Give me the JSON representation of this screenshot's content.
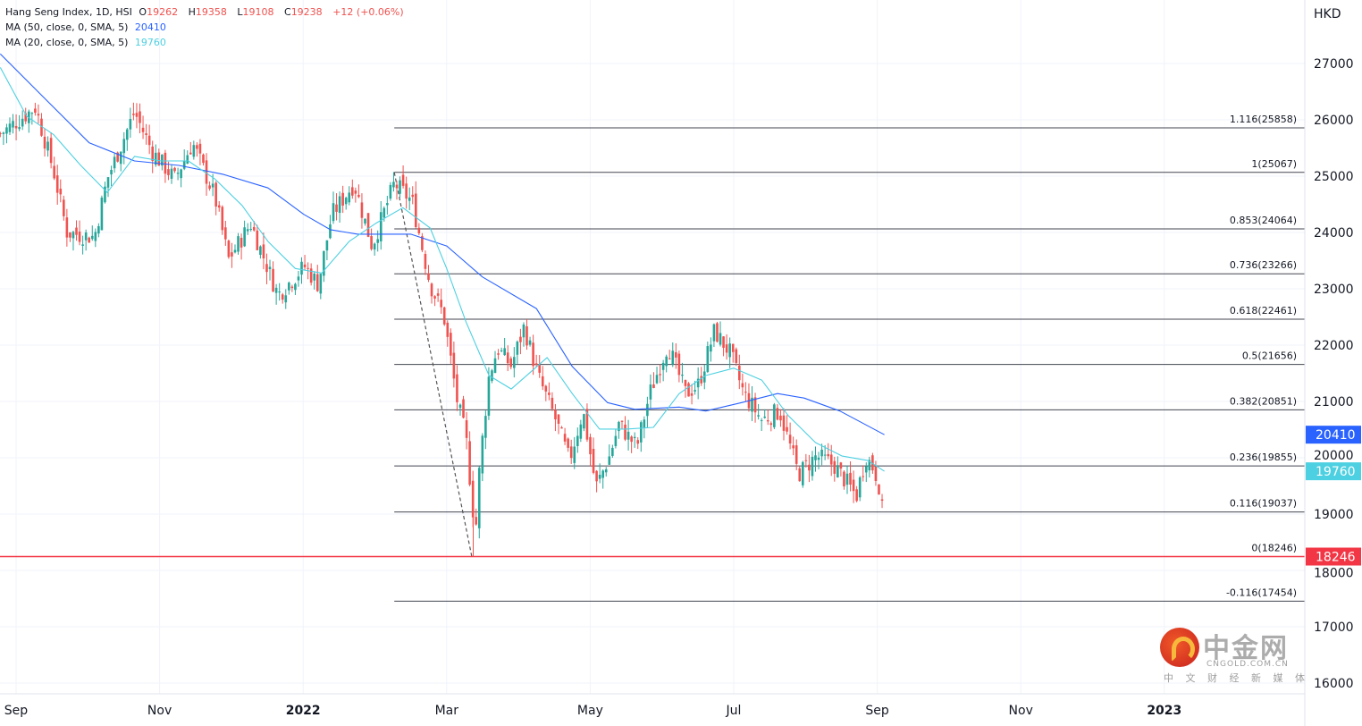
{
  "legend": {
    "symbol": "Hang Seng Index, 1D, HSI",
    "open_label": "O",
    "open": "19262",
    "high_label": "H",
    "high": "19358",
    "low_label": "L",
    "low": "19108",
    "close_label": "C",
    "close": "19238",
    "change": "+12 (+0.06%)",
    "ma50_label": "MA (50, close, 0, SMA, 5)",
    "ma50_value": "20410",
    "ma20_label": "MA (20, close, 0, SMA, 5)",
    "ma20_value": "19760"
  },
  "watermark": {
    "title": "中金网",
    "domain": "CNGOLD.COM.CN",
    "slogan": "中 文 财 经 新 媒 体"
  },
  "colors": {
    "up": "#26a69a",
    "down": "#ef5350",
    "ma50": "#2962ff",
    "ma20": "#4dd0e1",
    "fib": "#434651",
    "low_line": "#f23645"
  },
  "chart_data": {
    "type": "candlestick",
    "currency": "HKD",
    "x_unit": "months since 2021-09-01",
    "x_range": [
      -0.22,
      18.0
    ],
    "ylim": [
      15800,
      28000
    ],
    "y_ticks": [
      16000,
      17000,
      18000,
      19000,
      20000,
      21000,
      22000,
      23000,
      24000,
      25000,
      26000,
      27000
    ],
    "x_ticks": [
      {
        "label": "Sep",
        "m": 0,
        "bold": false
      },
      {
        "label": "Nov",
        "m": 2,
        "bold": false
      },
      {
        "label": "2022",
        "m": 4,
        "bold": true
      },
      {
        "label": "Mar",
        "m": 6,
        "bold": false
      },
      {
        "label": "May",
        "m": 8,
        "bold": false
      },
      {
        "label": "Jul",
        "m": 10,
        "bold": false
      },
      {
        "label": "Sep",
        "m": 12,
        "bold": false
      },
      {
        "label": "Nov",
        "m": 14,
        "bold": false
      },
      {
        "label": "2023",
        "m": 16,
        "bold": true
      }
    ],
    "price_path": [
      [
        -0.22,
        25750
      ],
      [
        0.27,
        26220
      ],
      [
        0.52,
        25110
      ],
      [
        0.71,
        24000
      ],
      [
        1.09,
        23920
      ],
      [
        1.27,
        24950
      ],
      [
        1.65,
        26140
      ],
      [
        1.9,
        25430
      ],
      [
        2.21,
        24950
      ],
      [
        2.46,
        25590
      ],
      [
        2.77,
        24630
      ],
      [
        2.96,
        23520
      ],
      [
        3.27,
        24160
      ],
      [
        3.65,
        22890
      ],
      [
        4.02,
        23400
      ],
      [
        4.21,
        23080
      ],
      [
        4.4,
        24320
      ],
      [
        4.71,
        24870
      ],
      [
        4.96,
        23760
      ],
      [
        5.27,
        24870
      ],
      [
        5.52,
        24550
      ],
      [
        5.77,
        23080
      ],
      [
        5.96,
        22520
      ],
      [
        6.15,
        20980
      ],
      [
        6.27,
        20350
      ],
      [
        6.4,
        18620
      ],
      [
        6.46,
        19860
      ],
      [
        6.59,
        21460
      ],
      [
        6.71,
        21940
      ],
      [
        6.9,
        21630
      ],
      [
        7.08,
        22330
      ],
      [
        7.27,
        21460
      ],
      [
        7.52,
        20670
      ],
      [
        7.71,
        19950
      ],
      [
        7.9,
        20830
      ],
      [
        8.08,
        19480
      ],
      [
        8.27,
        20030
      ],
      [
        8.4,
        20590
      ],
      [
        8.65,
        20190
      ],
      [
        8.83,
        21140
      ],
      [
        9.08,
        22010
      ],
      [
        9.33,
        21140
      ],
      [
        9.51,
        21300
      ],
      [
        9.73,
        22250
      ],
      [
        9.95,
        21860
      ],
      [
        10.14,
        21140
      ],
      [
        10.39,
        20670
      ],
      [
        10.64,
        20830
      ],
      [
        10.9,
        19710
      ],
      [
        11.15,
        20030
      ],
      [
        11.4,
        19870
      ],
      [
        11.71,
        19320
      ],
      [
        11.84,
        20030
      ],
      [
        11.96,
        19790
      ],
      [
        12.09,
        19240
      ]
    ],
    "last_candle": {
      "open": 19262,
      "high": 19358,
      "low": 19108,
      "close": 19238
    },
    "series": [
      {
        "name": "MA 50",
        "value": 20410,
        "points": [
          [
            -0.22,
            27170
          ],
          [
            0.4,
            26380
          ],
          [
            1.02,
            25590
          ],
          [
            1.65,
            25270
          ],
          [
            2.27,
            25190
          ],
          [
            2.89,
            25030
          ],
          [
            3.51,
            24790
          ],
          [
            4.01,
            24320
          ],
          [
            4.38,
            24050
          ],
          [
            4.76,
            23970
          ],
          [
            5.5,
            23970
          ],
          [
            6.0,
            23760
          ],
          [
            6.5,
            23210
          ],
          [
            7.25,
            22650
          ],
          [
            7.75,
            21620
          ],
          [
            8.24,
            20980
          ],
          [
            8.62,
            20860
          ],
          [
            9.24,
            20900
          ],
          [
            9.61,
            20830
          ],
          [
            10.11,
            20980
          ],
          [
            10.61,
            21140
          ],
          [
            10.98,
            21060
          ],
          [
            11.48,
            20830
          ],
          [
            12.1,
            20410
          ]
        ]
      },
      {
        "name": "MA 20",
        "value": 19760,
        "points": [
          [
            -0.22,
            26930
          ],
          [
            0.15,
            26060
          ],
          [
            0.52,
            25740
          ],
          [
            0.9,
            25190
          ],
          [
            1.27,
            24710
          ],
          [
            1.65,
            25350
          ],
          [
            2.02,
            25270
          ],
          [
            2.4,
            25270
          ],
          [
            2.77,
            24950
          ],
          [
            3.15,
            24480
          ],
          [
            3.51,
            23840
          ],
          [
            3.89,
            23360
          ],
          [
            4.26,
            23280
          ],
          [
            4.64,
            23840
          ],
          [
            5.01,
            24160
          ],
          [
            5.39,
            24440
          ],
          [
            5.77,
            24080
          ],
          [
            6.0,
            23360
          ],
          [
            6.27,
            22410
          ],
          [
            6.59,
            21460
          ],
          [
            6.9,
            21220
          ],
          [
            7.4,
            21780
          ],
          [
            7.75,
            21140
          ],
          [
            8.13,
            20510
          ],
          [
            8.5,
            20510
          ],
          [
            8.88,
            20540
          ],
          [
            9.24,
            21140
          ],
          [
            9.61,
            21460
          ],
          [
            10.0,
            21590
          ],
          [
            10.39,
            21380
          ],
          [
            10.76,
            20750
          ],
          [
            11.14,
            20270
          ],
          [
            11.51,
            20030
          ],
          [
            11.87,
            19950
          ],
          [
            12.1,
            19760
          ]
        ]
      }
    ],
    "fib_start_m": 5.27,
    "fib_levels": [
      {
        "label": "1.116(25858)",
        "price": 25858
      },
      {
        "label": "1(25067)",
        "price": 25067
      },
      {
        "label": "0.853(24064)",
        "price": 24064
      },
      {
        "label": "0.736(23266)",
        "price": 23266
      },
      {
        "label": "0.618(22461)",
        "price": 22461
      },
      {
        "label": "0.5(21656)",
        "price": 21656
      },
      {
        "label": "0.382(20851)",
        "price": 20851
      },
      {
        "label": "0.236(19855)",
        "price": 19855
      },
      {
        "label": "0.116(19037)",
        "price": 19037
      },
      {
        "label": "0(18246)",
        "price": 18246
      },
      {
        "label": "-0.116(17454)",
        "price": 17454
      }
    ],
    "trend_line": [
      [
        5.27,
        25067
      ],
      [
        6.35,
        18246
      ]
    ],
    "low_line": {
      "price": 18246,
      "label": "18246"
    },
    "price_labels": [
      {
        "label": "20410",
        "price": 20410,
        "color": "#2962ff"
      },
      {
        "label": "19760",
        "price": 19760,
        "color": "#4dd0e1"
      },
      {
        "label": "18246",
        "price": 18246,
        "color": "#f23645"
      }
    ]
  }
}
